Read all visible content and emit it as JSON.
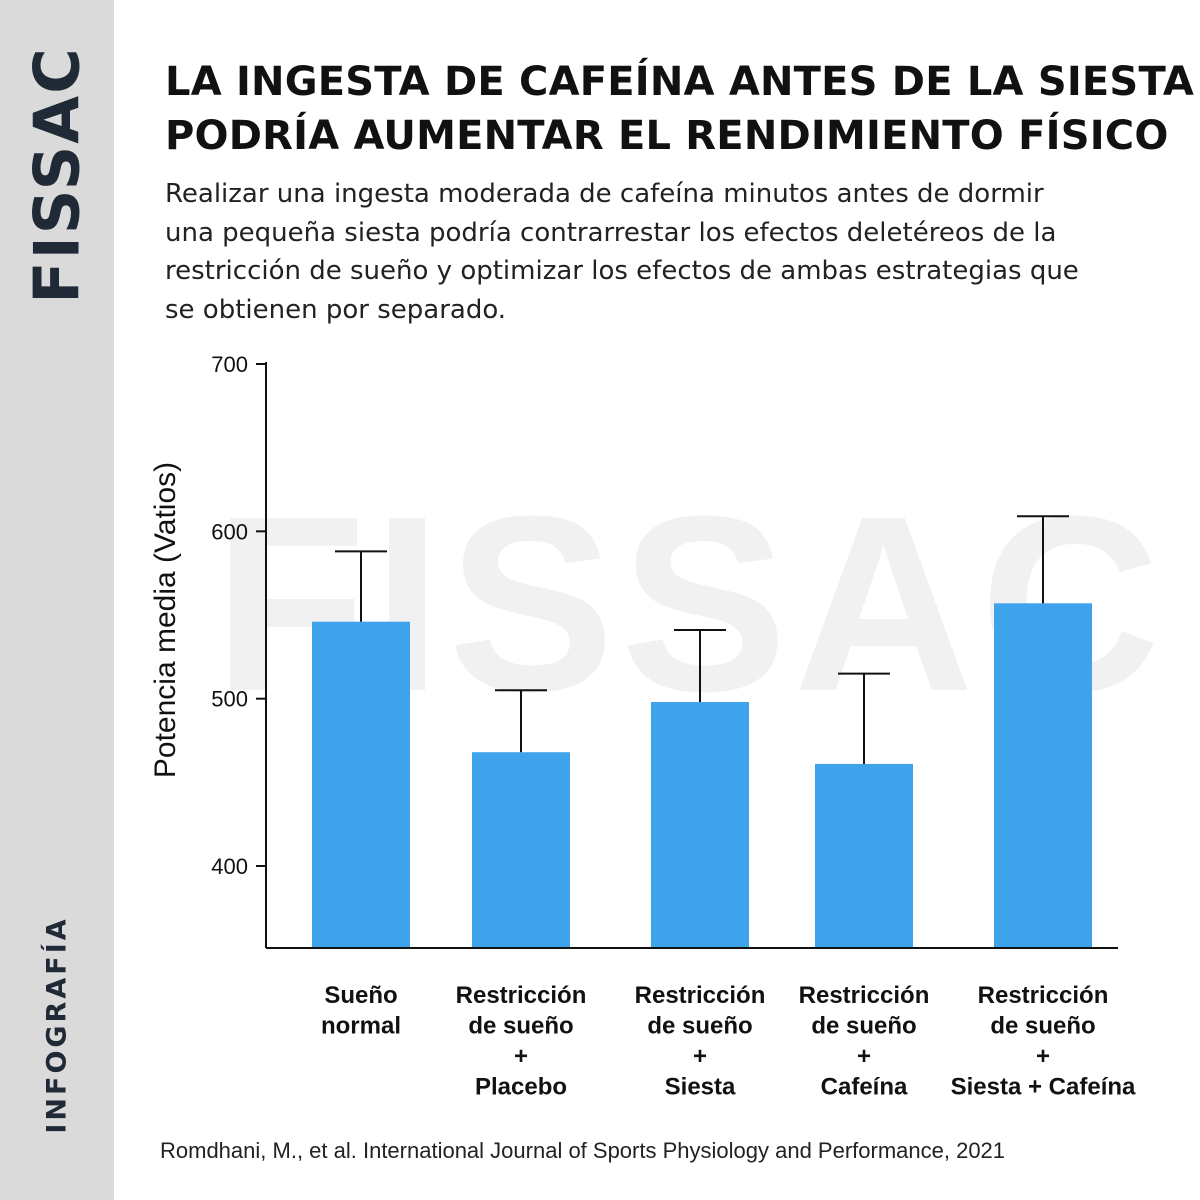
{
  "sidebar": {
    "brand": "FISSAC",
    "section": "INFOGRAFÍA"
  },
  "header": {
    "title_lines": [
      "LA INGESTA DE CAFEÍNA ANTES DE LA SIESTA",
      "PODRÍA AUMENTAR EL RENDIMIENTO FÍSICO"
    ],
    "subtitle_lines": [
      "Realizar una ingesta moderada de cafeína minutos antes de dormir",
      "una pequeña siesta podría contrarrestar los efectos deletéreos de la",
      "restricción de sueño y optimizar los efectos de ambas estrategias que",
      "se obtienen por separado."
    ]
  },
  "watermark": "FISSAC",
  "chart_data": {
    "type": "bar",
    "ylabel": "Potencia media (Vatios)",
    "ylim": [
      350,
      700
    ],
    "yticks": [
      400,
      500,
      600,
      700
    ],
    "categories": [
      [
        "Sueño",
        "normal"
      ],
      [
        "Restricción",
        "de sueño",
        "+",
        "Placebo"
      ],
      [
        "Restricción",
        "de sueño",
        "+",
        "Siesta"
      ],
      [
        "Restricción",
        "de sueño",
        "+",
        "Cafeína"
      ],
      [
        "Restricción",
        "de sueño",
        "+",
        "Siesta + Cafeína"
      ]
    ],
    "values": [
      546,
      468,
      498,
      461,
      557
    ],
    "error_upper": [
      588,
      505,
      541,
      515,
      609
    ],
    "bar_color": "#3fa3ec",
    "grid": false,
    "legend": "none"
  },
  "citation": "Romdhani, M., et al. International Journal of Sports Physiology and Performance, 2021"
}
